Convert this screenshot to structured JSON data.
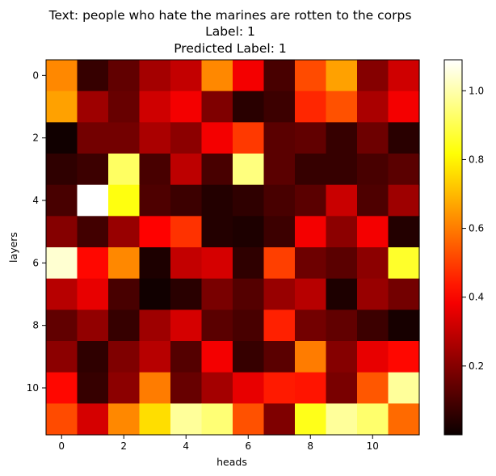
{
  "chart_data": {
    "type": "heatmap",
    "title_lines": [
      "Text: people who hate the marines are rotten to the corps",
      "Label: 1",
      "Predicted Label: 1"
    ],
    "xlabel": "heads",
    "ylabel": "layers",
    "x_ticks": [
      0,
      2,
      4,
      6,
      8,
      10
    ],
    "y_ticks": [
      0,
      2,
      4,
      6,
      8,
      10
    ],
    "colormap": "hot",
    "colorbar": {
      "ticks": [
        0.2,
        0.4,
        0.6,
        0.8,
        1.0
      ],
      "tick_labels": [
        "0.2",
        "0.4",
        "0.6",
        "0.8",
        "1.0"
      ],
      "range": [
        0.0,
        1.09
      ]
    },
    "grid": false,
    "values": [
      [
        0.62,
        0.07,
        0.14,
        0.25,
        0.3,
        0.62,
        0.38,
        0.1,
        0.52,
        0.66,
        0.2,
        0.32
      ],
      [
        0.66,
        0.24,
        0.15,
        0.32,
        0.38,
        0.19,
        0.05,
        0.08,
        0.46,
        0.53,
        0.26,
        0.38
      ],
      [
        0.01,
        0.17,
        0.17,
        0.26,
        0.21,
        0.38,
        0.49,
        0.13,
        0.14,
        0.07,
        0.16,
        0.05
      ],
      [
        0.06,
        0.08,
        0.92,
        0.1,
        0.29,
        0.1,
        0.95,
        0.13,
        0.07,
        0.07,
        0.1,
        0.13
      ],
      [
        0.1,
        1.09,
        0.83,
        0.11,
        0.08,
        0.04,
        0.06,
        0.1,
        0.13,
        0.31,
        0.11,
        0.24
      ],
      [
        0.2,
        0.09,
        0.23,
        0.4,
        0.48,
        0.04,
        0.03,
        0.08,
        0.38,
        0.21,
        0.38,
        0.04
      ],
      [
        1.04,
        0.41,
        0.62,
        0.03,
        0.3,
        0.33,
        0.06,
        0.5,
        0.16,
        0.13,
        0.21,
        0.86
      ],
      [
        0.28,
        0.36,
        0.1,
        0.01,
        0.05,
        0.18,
        0.12,
        0.23,
        0.28,
        0.03,
        0.23,
        0.17
      ],
      [
        0.14,
        0.22,
        0.07,
        0.24,
        0.33,
        0.13,
        0.1,
        0.45,
        0.17,
        0.14,
        0.08,
        0.02
      ],
      [
        0.21,
        0.06,
        0.19,
        0.28,
        0.12,
        0.38,
        0.07,
        0.13,
        0.6,
        0.2,
        0.36,
        0.41
      ],
      [
        0.41,
        0.07,
        0.21,
        0.6,
        0.15,
        0.25,
        0.36,
        0.44,
        0.43,
        0.18,
        0.54,
        0.98
      ],
      [
        0.52,
        0.33,
        0.62,
        0.76,
        0.98,
        0.94,
        0.53,
        0.19,
        0.84,
        0.98,
        0.93,
        0.57
      ]
    ]
  }
}
